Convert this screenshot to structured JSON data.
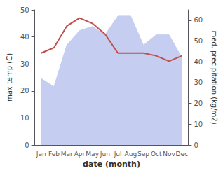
{
  "chart_data": {
    "type": "line",
    "xlabel": "date (month)",
    "ylabel": "max temp (C)",
    "y2label": "med. precipitation (kg/m2)",
    "categories": [
      "Jan",
      "Feb",
      "Mar",
      "Apr",
      "May",
      "Jun",
      "Jul",
      "Aug",
      "Sep",
      "Oct",
      "Nov",
      "Dec"
    ],
    "series": [
      {
        "type": "area",
        "axis": "y2",
        "color": "#c5cdf0",
        "values": [
          32,
          28,
          48,
          55,
          57,
          53,
          62,
          62,
          48,
          53,
          53,
          42
        ]
      },
      {
        "type": "line",
        "color": "#c0504d",
        "values": [
          34,
          36,
          44,
          47,
          45,
          41,
          34,
          34,
          34,
          33,
          31,
          33
        ]
      }
    ],
    "ylim": [
      0,
      50
    ],
    "yticks": [
      0,
      10,
      20,
      30,
      40,
      50
    ],
    "y2lim": [
      0,
      65
    ],
    "y2ticks": [
      0,
      10,
      20,
      30,
      40,
      50,
      60
    ],
    "grid": false
  }
}
